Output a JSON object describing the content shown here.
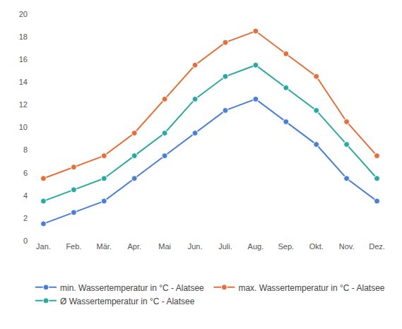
{
  "chart_data": {
    "type": "line",
    "categories": [
      "Jan.",
      "Feb.",
      "Mär.",
      "Apr.",
      "Mai",
      "Jun.",
      "Juli.",
      "Aug.",
      "Sep.",
      "Okt.",
      "Nov.",
      "Dez."
    ],
    "series": [
      {
        "name": "min. Wassertemperatur in °C - Alatsee",
        "color": "#4a7fd4",
        "marker": "circle",
        "values": [
          1.5,
          2.5,
          3.5,
          5.5,
          7.5,
          9.5,
          11.5,
          12.5,
          10.5,
          8.5,
          5.5,
          3.5
        ]
      },
      {
        "name": "max. Wassertemperatur in °C - Alatsee",
        "color": "#e3703b",
        "marker": "circle",
        "values": [
          5.5,
          6.5,
          7.5,
          9.5,
          12.5,
          15.5,
          17.5,
          18.5,
          16.5,
          14.5,
          10.5,
          7.5
        ]
      },
      {
        "name": "Ø Wassertemperatur in °C - Alatsee",
        "color": "#2aa9a3",
        "marker": "circle",
        "values": [
          3.5,
          4.5,
          5.5,
          7.5,
          9.5,
          12.5,
          14.5,
          15.5,
          13.5,
          11.5,
          8.5,
          5.5
        ]
      }
    ],
    "ylim": [
      0,
      20
    ],
    "yticks": [
      0,
      2,
      4,
      6,
      8,
      10,
      12,
      14,
      16,
      18,
      20
    ],
    "grid": false,
    "legend": "bottom"
  }
}
